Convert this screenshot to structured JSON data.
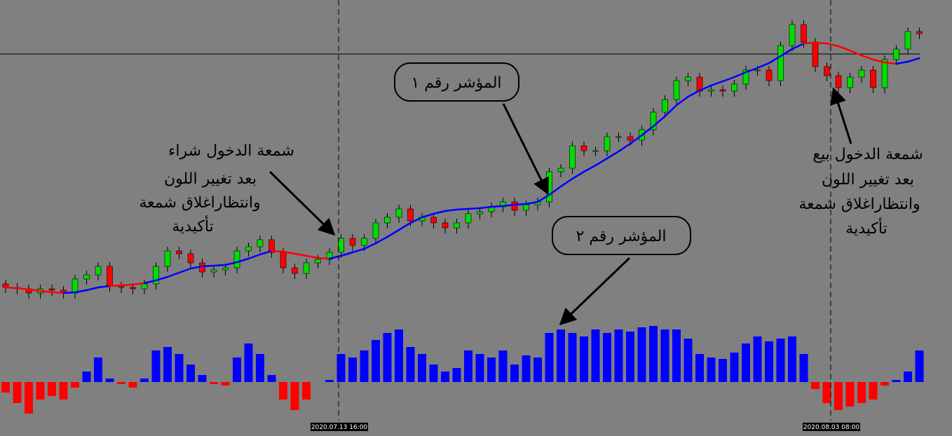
{
  "chart_data": {
    "type": "candlestick",
    "open": [
      195,
      190,
      188,
      182,
      188,
      186,
      182,
      202,
      208,
      220,
      192,
      190,
      188,
      195,
      220,
      242,
      238,
      225,
      212,
      215,
      218,
      242,
      248,
      258,
      240,
      218,
      210,
      225,
      230,
      240,
      260,
      250,
      260,
      282,
      290,
      302,
      285,
      290,
      282,
      275,
      282,
      295,
      298,
      305,
      312,
      300,
      308,
      312,
      355,
      360,
      392,
      385,
      385,
      405,
      405,
      400,
      415,
      440,
      458,
      485,
      490,
      470,
      472,
      470,
      480,
      500,
      500,
      485,
      535,
      565,
      540,
      505,
      492,
      475,
      490,
      500,
      475,
      515,
      530,
      555
    ],
    "high": [
      201,
      196,
      194,
      194,
      194,
      192,
      208,
      214,
      226,
      226,
      198,
      196,
      201,
      226,
      248,
      248,
      244,
      231,
      221,
      224,
      248,
      254,
      264,
      264,
      246,
      224,
      231,
      236,
      246,
      266,
      266,
      266,
      288,
      296,
      308,
      308,
      296,
      296,
      288,
      288,
      301,
      304,
      311,
      318,
      318,
      314,
      318,
      361,
      366,
      398,
      398,
      391,
      411,
      411,
      411,
      421,
      446,
      464,
      491,
      496,
      496,
      478,
      478,
      486,
      506,
      506,
      506,
      541,
      571,
      571,
      546,
      511,
      498,
      496,
      506,
      506,
      521,
      536,
      561,
      561
    ],
    "low": [
      182,
      180,
      174,
      174,
      178,
      174,
      174,
      194,
      200,
      184,
      182,
      180,
      180,
      187,
      212,
      230,
      217,
      204,
      204,
      207,
      210,
      234,
      240,
      232,
      210,
      202,
      202,
      217,
      222,
      232,
      242,
      242,
      252,
      274,
      282,
      277,
      277,
      274,
      267,
      267,
      274,
      287,
      290,
      297,
      292,
      292,
      300,
      304,
      347,
      352,
      377,
      377,
      377,
      397,
      392,
      392,
      407,
      432,
      450,
      477,
      462,
      462,
      462,
      462,
      472,
      492,
      477,
      477,
      527,
      532,
      497,
      484,
      467,
      467,
      482,
      467,
      467,
      507,
      522,
      544
    ],
    "close": [
      190,
      188,
      182,
      188,
      186,
      182,
      202,
      208,
      220,
      192,
      190,
      188,
      195,
      220,
      242,
      238,
      225,
      212,
      215,
      218,
      242,
      248,
      258,
      240,
      218,
      210,
      225,
      230,
      240,
      260,
      250,
      260,
      282,
      290,
      302,
      285,
      290,
      282,
      275,
      282,
      295,
      298,
      305,
      312,
      300,
      308,
      312,
      355,
      360,
      392,
      385,
      385,
      405,
      405,
      400,
      415,
      440,
      458,
      485,
      490,
      470,
      472,
      470,
      480,
      500,
      500,
      485,
      535,
      565,
      540,
      505,
      492,
      475,
      490,
      500,
      475,
      515,
      530,
      555,
      552
    ],
    "up_color": "#00dd00",
    "down_color": "#ff0000",
    "ylim": [
      0,
      600
    ],
    "level_line": 523,
    "indicator_line": {
      "values": [
        190,
        189,
        187,
        185,
        183,
        182,
        183,
        186,
        190,
        192,
        193,
        194,
        196,
        200,
        205,
        211,
        217,
        220,
        221,
        222,
        226,
        231,
        237,
        242,
        241,
        238,
        235,
        232,
        231,
        235,
        240,
        245,
        253,
        262,
        272,
        282,
        290,
        295,
        299,
        301,
        302,
        303,
        305,
        306,
        308,
        309,
        312,
        322,
        334,
        345,
        355,
        364,
        374,
        384,
        395,
        407,
        420,
        434,
        450,
        462,
        471,
        478,
        484,
        490,
        497,
        503,
        510,
        520,
        530,
        538,
        539,
        538,
        534,
        528,
        521,
        515,
        511,
        509,
        512,
        517
      ],
      "colors": [
        "#ff0000",
        "#ff0000",
        "#ff0000",
        "#ff0000",
        "#ff0000",
        "#ff0000",
        "#0000ff",
        "#0000ff",
        "#0000ff",
        "#0000ff",
        "#ff0000",
        "#ff0000",
        "#ff0000",
        "#0000ff",
        "#0000ff",
        "#0000ff",
        "#0000ff",
        "#0000ff",
        "#0000ff",
        "#0000ff",
        "#0000ff",
        "#0000ff",
        "#0000ff",
        "#0000ff",
        "#ff0000",
        "#ff0000",
        "#ff0000",
        "#ff0000",
        "#ff0000",
        "#0000ff",
        "#0000ff",
        "#0000ff",
        "#0000ff",
        "#0000ff",
        "#0000ff",
        "#0000ff",
        "#0000ff",
        "#0000ff",
        "#0000ff",
        "#0000ff",
        "#0000ff",
        "#0000ff",
        "#0000ff",
        "#0000ff",
        "#0000ff",
        "#0000ff",
        "#0000ff",
        "#0000ff",
        "#0000ff",
        "#0000ff",
        "#0000ff",
        "#0000ff",
        "#0000ff",
        "#0000ff",
        "#0000ff",
        "#0000ff",
        "#0000ff",
        "#0000ff",
        "#0000ff",
        "#0000ff",
        "#0000ff",
        "#0000ff",
        "#0000ff",
        "#0000ff",
        "#0000ff",
        "#0000ff",
        "#0000ff",
        "#0000ff",
        "#0000ff",
        "#0000ff",
        "#ff0000",
        "#ff0000",
        "#ff0000",
        "#ff0000",
        "#ff0000",
        "#ff0000",
        "#ff0000",
        "#ff0000",
        "#0000ff",
        "#0000ff"
      ]
    },
    "histogram": {
      "values": [
        -15,
        -30,
        -45,
        -25,
        -20,
        -25,
        -8,
        15,
        35,
        5,
        -3,
        -8,
        5,
        45,
        50,
        40,
        25,
        10,
        -3,
        -5,
        35,
        55,
        40,
        10,
        -25,
        -40,
        -25,
        0,
        3,
        40,
        35,
        45,
        60,
        70,
        75,
        50,
        40,
        25,
        15,
        20,
        45,
        40,
        35,
        45,
        25,
        38,
        35,
        70,
        75,
        70,
        65,
        75,
        70,
        75,
        72,
        78,
        80,
        75,
        75,
        62,
        40,
        35,
        33,
        42,
        55,
        65,
        58,
        62,
        65,
        40,
        -10,
        -30,
        -40,
        -35,
        -30,
        -25,
        -5,
        3,
        15,
        45
      ],
      "positive_color": "#0000ff",
      "negative_color": "#ff0000",
      "ylim": [
        -55,
        85
      ]
    },
    "time_markers": [
      "2020.07.13 16:00",
      "2020.08.03 08:00"
    ],
    "annotations": {
      "buy": [
        "شمعة الدخول شراء",
        "بعد تغيير اللون",
        "وانتظاراغلاق شمعة",
        "تأكيدية"
      ],
      "indicator1": "المؤشر رقم ١",
      "indicator2": "المؤشر رقم ٢",
      "sell": [
        "شمعة الدخول بيع",
        "بعد تغيير اللون",
        "وانتظاراغلاق شمعة",
        "تأكيدية"
      ]
    }
  }
}
